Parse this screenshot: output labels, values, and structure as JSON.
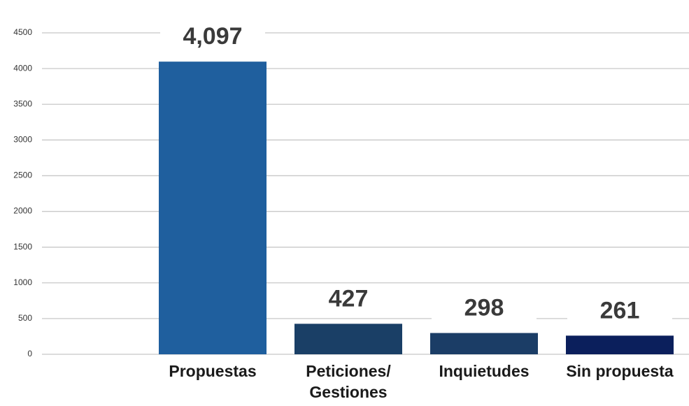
{
  "chart_data": {
    "type": "bar",
    "categories": [
      "Propuestas",
      "Peticiones/ Gestiones",
      "Inquietudes",
      "Sin propuesta"
    ],
    "values": [
      4097,
      427,
      298,
      261
    ],
    "value_labels": [
      "4,097",
      "427",
      "298",
      "261"
    ],
    "colors": [
      "#1f5f9e",
      "#1a3f66",
      "#1b3d66",
      "#0b1f5c"
    ],
    "ylim": [
      0,
      4500
    ],
    "yticks": [
      0,
      500,
      1000,
      1500,
      2000,
      2500,
      3000,
      3500,
      4000,
      4500
    ],
    "grid": true
  }
}
